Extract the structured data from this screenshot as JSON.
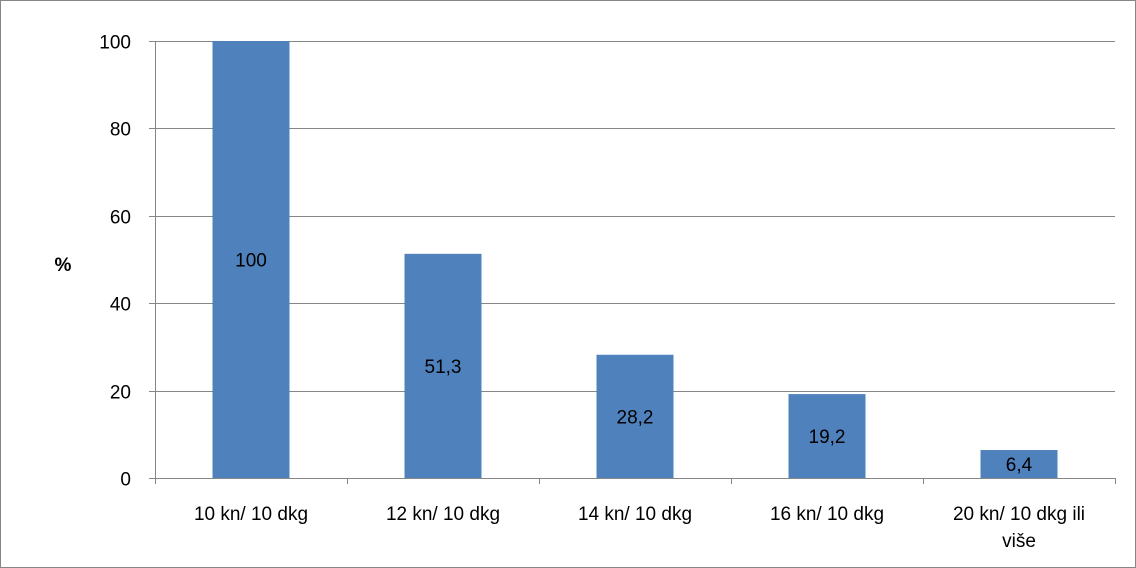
{
  "chart_data": {
    "type": "bar",
    "categories": [
      "10 kn/ 10 dkg",
      "12 kn/ 10 dkg",
      "14 kn/ 10 dkg",
      "16 kn/ 10 dkg",
      "20 kn/ 10 dkg ili više"
    ],
    "values": [
      100,
      51.3,
      28.2,
      19.2,
      6.4
    ],
    "data_labels": [
      "100",
      "51,3",
      "28,2",
      "19,2",
      "6,4"
    ],
    "title": "",
    "xlabel": "",
    "ylabel": "%",
    "ylim": [
      0,
      100
    ],
    "yticks": [
      0,
      20,
      40,
      60,
      80,
      100
    ],
    "grid": true,
    "legend": "none",
    "bar_color": "#4f81bd",
    "grid_color": "#868686"
  }
}
